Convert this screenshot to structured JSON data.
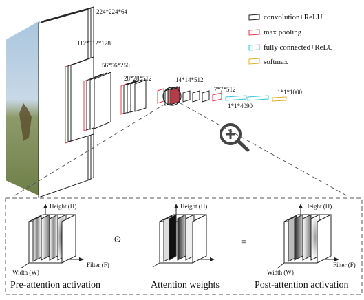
{
  "legend": {
    "items": [
      {
        "label": "convolution+ReLU",
        "color": "#222222"
      },
      {
        "label": "max pooling",
        "color": "#e8394a"
      },
      {
        "label": "fully connected+ReLU",
        "color": "#32c6d6"
      },
      {
        "label": "softmax",
        "color": "#e0b030"
      }
    ]
  },
  "dimensions": {
    "d1": "224*224*64",
    "d2": "112*112*128",
    "d3": "56*56*256",
    "d4": "28*28*512",
    "d5": "14*14*512",
    "d6": "7*7*512",
    "d7": "1*1*4090",
    "d8": "1*1*1000"
  },
  "panel": {
    "axis_height": "Height  (H)",
    "axis_width": "Width  (W)",
    "axis_filter": "Filter  (F)",
    "odot": "⊙",
    "equals": "=",
    "titles": {
      "pre": "Pre-attention activation",
      "weights": "Attention weights",
      "post": "Post-attention activation"
    }
  },
  "colors": {
    "conv": "#222222",
    "pool": "#e8394a",
    "fc": "#32c6d6",
    "softmax": "#e0b030"
  }
}
